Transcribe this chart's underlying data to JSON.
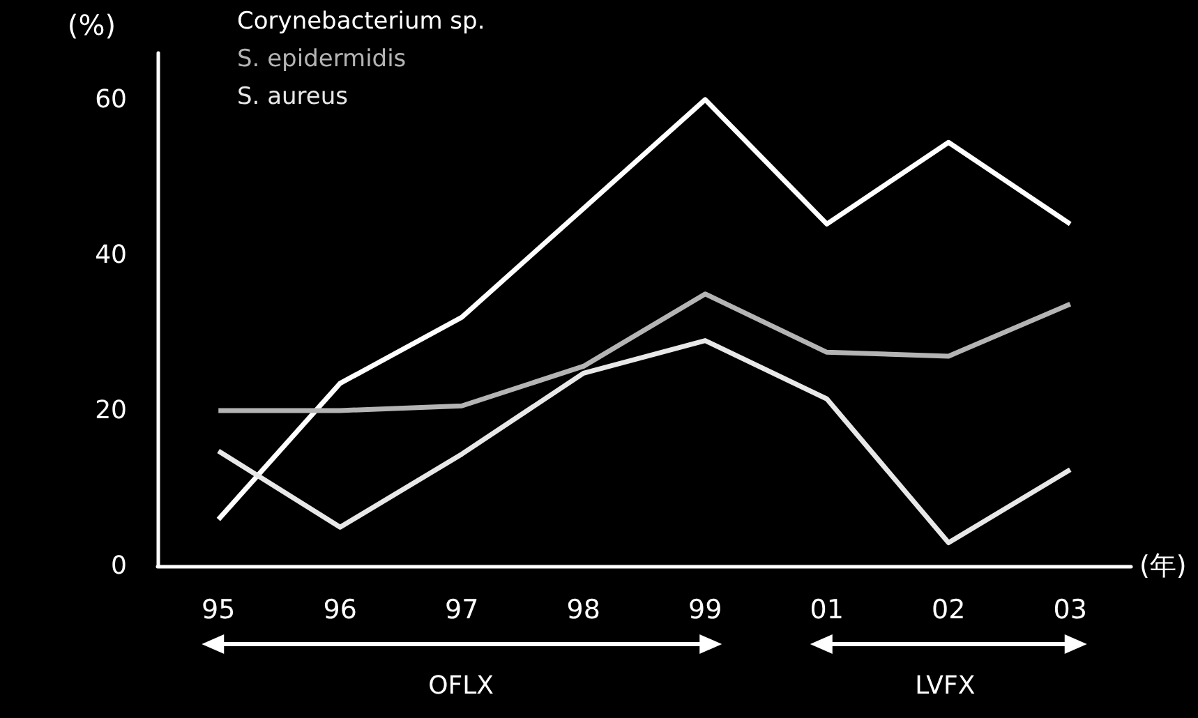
{
  "chart_data": {
    "type": "line",
    "xlabel": "(年)",
    "ylabel": "(%)",
    "categories": [
      "95",
      "96",
      "97",
      "98",
      "99",
      "01",
      "02",
      "03"
    ],
    "series": [
      {
        "name": "Corynebacterium sp.",
        "color": "#ffffff",
        "values": [
          6,
          23.5,
          32,
          46,
          60,
          44,
          54.5,
          44
        ]
      },
      {
        "name": "S. epidermidis",
        "color": "#b4b4b4",
        "values": [
          20,
          20,
          20.6,
          25.7,
          35,
          27.5,
          27,
          33.7
        ]
      },
      {
        "name": "S. aureus",
        "color": "#e8e8e8",
        "values": [
          14.8,
          5,
          14.4,
          24.8,
          29,
          21.5,
          3,
          12.4
        ]
      }
    ],
    "ylim": [
      0,
      66
    ],
    "yticks": [
      0,
      20,
      40,
      60
    ],
    "grid": false,
    "legend": "top left",
    "marker": "none",
    "line_style": "solid",
    "annotations": [
      "OFLX",
      "LVFX"
    ]
  }
}
